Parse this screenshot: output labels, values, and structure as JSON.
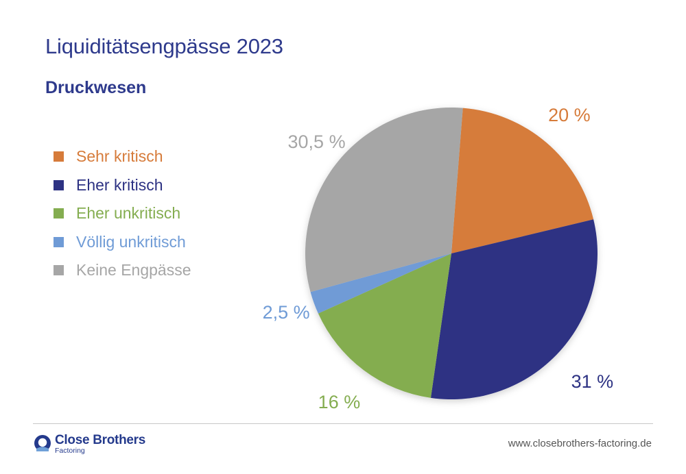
{
  "header": {
    "title": "Liquiditätsengpässe 2023",
    "subtitle": "Druckwesen"
  },
  "chart_data": {
    "type": "pie",
    "title": "Liquiditätsengpässe 2023",
    "subtitle": "Druckwesen",
    "legend_position": "left",
    "slices": [
      {
        "label": "Sehr kritisch",
        "value": 20,
        "value_label": "20 %",
        "color": "#d67b3a"
      },
      {
        "label": "Eher kritisch",
        "value": 31,
        "value_label": "31 %",
        "color": "#2d3283"
      },
      {
        "label": "Eher unkritisch",
        "value": 16,
        "value_label": "16 %",
        "color": "#84ad50"
      },
      {
        "label": "Völlig unkritisch",
        "value": 2.5,
        "value_label": "2,5 %",
        "color": "#6f9bd6"
      },
      {
        "label": "Keine Engpässe",
        "value": 30.5,
        "value_label": "30,5 %",
        "color": "#a6a6a6"
      }
    ]
  },
  "footer": {
    "logo_name": "Close Brothers",
    "logo_sub": "Factoring",
    "url": "www.closebrothers-factoring.de",
    "brand_color": "#243a8c"
  }
}
